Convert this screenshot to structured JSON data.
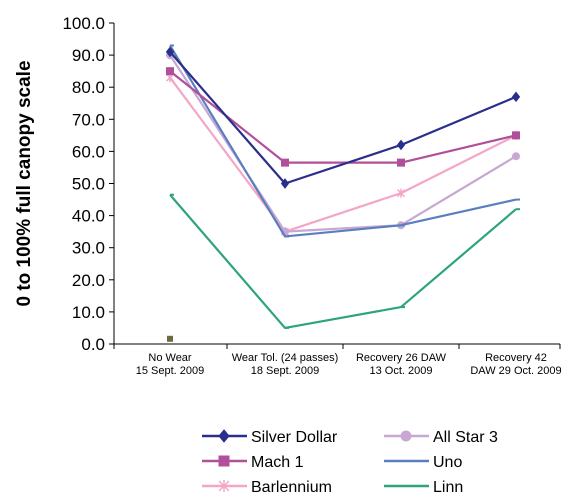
{
  "chart_data": {
    "type": "line",
    "title": "",
    "ylabel": "0 to 100% full canopy scale",
    "xlabel": "",
    "ylim": [
      0,
      100
    ],
    "yticks": [
      "0.0",
      "10.0",
      "20.0",
      "30.0",
      "40.0",
      "50.0",
      "60.0",
      "70.0",
      "80.0",
      "90.0",
      "100.0"
    ],
    "categories": [
      [
        "No Wear",
        "15 Sept. 2009"
      ],
      [
        "Wear Tol. (24 passes)",
        "18 Sept. 2009"
      ],
      [
        "Recovery 26 DAW",
        "13 Oct. 2009"
      ],
      [
        "Recovery 42",
        "DAW 29 Oct. 2009"
      ]
    ],
    "grid": false,
    "legend_position": "bottom",
    "series": [
      {
        "name": "Silver Dollar",
        "color": "#2b2f8c",
        "marker": "diamond",
        "values": [
          91,
          50,
          62,
          77
        ]
      },
      {
        "name": "Mach 1",
        "color": "#b0509a",
        "marker": "square",
        "values": [
          85,
          56.5,
          56.5,
          65
        ]
      },
      {
        "name": "Barlennium",
        "color": "#f4a6c8",
        "marker": "asterisk",
        "values": [
          83,
          35,
          47,
          65
        ]
      },
      {
        "name": "All Star 3",
        "color": "#c8a8d2",
        "marker": "circle",
        "values": [
          90,
          35,
          37,
          58.5
        ]
      },
      {
        "name": "Uno",
        "color": "#5a7fc0",
        "marker": "dash",
        "values": [
          93,
          33.5,
          37,
          45
        ]
      },
      {
        "name": "Linn",
        "color": "#2ea37f",
        "marker": "dash",
        "values": [
          46.5,
          5,
          11.5,
          42
        ]
      }
    ],
    "annotations": [
      {
        "note": "small dark marker near origin of first category",
        "x_category": 0,
        "y": 1
      }
    ]
  }
}
